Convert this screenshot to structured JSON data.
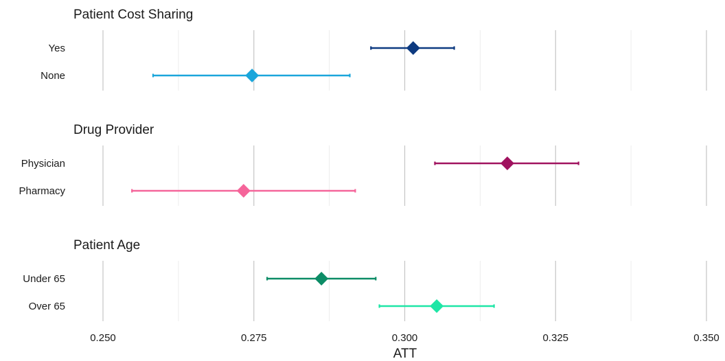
{
  "chart_data": {
    "type": "forest",
    "xlabel": "ATT",
    "xlim": [
      0.25,
      0.35
    ],
    "xticks": [
      0.25,
      0.275,
      0.3,
      0.325,
      0.35
    ],
    "xtick_labels": [
      "0.250",
      "0.275",
      "0.300",
      "0.325",
      "0.350"
    ],
    "grid": true,
    "legend": "none",
    "panels": [
      {
        "title": "Patient Cost Sharing",
        "rows": [
          {
            "label": "Yes",
            "estimate": 0.3014,
            "lower": 0.2944,
            "upper": 0.3082,
            "color": "#0d3a80"
          },
          {
            "label": "None",
            "estimate": 0.2747,
            "lower": 0.2583,
            "upper": 0.2909,
            "color": "#1aa6db"
          }
        ]
      },
      {
        "title": "Drug Provider",
        "rows": [
          {
            "label": "Physician",
            "estimate": 0.317,
            "lower": 0.305,
            "upper": 0.3288,
            "color": "#a0125f"
          },
          {
            "label": "Pharmacy",
            "estimate": 0.2733,
            "lower": 0.2548,
            "upper": 0.2918,
            "color": "#f5659a"
          }
        ]
      },
      {
        "title": "Patient Age",
        "rows": [
          {
            "label": "Under 65",
            "estimate": 0.2862,
            "lower": 0.2772,
            "upper": 0.2952,
            "color": "#0c8c66"
          },
          {
            "label": "Over 65",
            "estimate": 0.3053,
            "lower": 0.2958,
            "upper": 0.3148,
            "color": "#1ee6a6"
          }
        ]
      }
    ]
  }
}
